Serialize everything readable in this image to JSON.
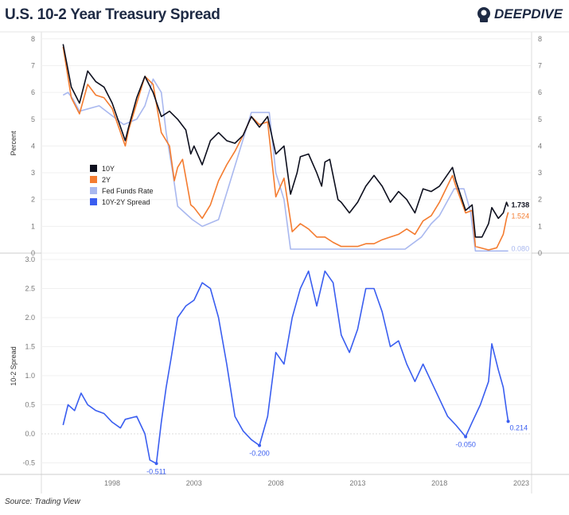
{
  "title": "U.S. 10-2 Year Treasury Spread",
  "logo_text": "DEEPDIVE",
  "source": "Source: Trading View",
  "colors": {
    "y10": "#0d0f1e",
    "y2": "#f47c30",
    "ffr": "#a9b8ef",
    "spread": "#3a5ef0"
  },
  "chart_data": [
    {
      "type": "line",
      "ylabel": "Percent",
      "ylim": [
        0,
        8
      ],
      "yticks": [
        "0",
        "1",
        "2",
        "3",
        "4",
        "5",
        "6",
        "7",
        "8"
      ],
      "legend": [
        "10Y",
        "2Y",
        "Fed Funds Rate",
        "10Y-2Y Spread"
      ],
      "legend_placement": "center-left",
      "series": [
        {
          "name": "10Y",
          "color": "#0d0f1e",
          "end_label": "1.738",
          "x": [
            1995.0,
            1995.5,
            1996.0,
            1996.5,
            1997.0,
            1997.5,
            1998.0,
            1998.8,
            1999.0,
            1999.5,
            2000.0,
            2000.5,
            2001.0,
            2001.5,
            2002.0,
            2002.5,
            2002.8,
            2003.0,
            2003.5,
            2004.0,
            2004.5,
            2005.0,
            2005.5,
            2006.0,
            2006.5,
            2007.0,
            2007.5,
            2008.0,
            2008.5,
            2008.9,
            2009.3,
            2009.5,
            2010.0,
            2010.5,
            2010.8,
            2011.0,
            2011.3,
            2011.8,
            2012.0,
            2012.5,
            2013.0,
            2013.5,
            2014.0,
            2014.5,
            2015.0,
            2015.5,
            2016.0,
            2016.5,
            2017.0,
            2017.5,
            2018.0,
            2018.8,
            2019.0,
            2019.6,
            2020.0,
            2020.2,
            2020.6,
            2021.0,
            2021.2,
            2021.6,
            2021.9,
            2022.1,
            2022.2
          ],
          "y": [
            7.8,
            6.2,
            5.6,
            6.8,
            6.4,
            6.2,
            5.6,
            4.2,
            4.7,
            5.8,
            6.6,
            6.0,
            5.1,
            5.3,
            5.0,
            4.6,
            3.7,
            4.0,
            3.3,
            4.2,
            4.5,
            4.2,
            4.1,
            4.4,
            5.1,
            4.7,
            5.1,
            3.7,
            4.0,
            2.2,
            3.0,
            3.6,
            3.7,
            3.0,
            2.5,
            3.4,
            3.5,
            2.0,
            1.9,
            1.5,
            1.9,
            2.5,
            2.9,
            2.5,
            1.9,
            2.3,
            2.0,
            1.5,
            2.4,
            2.3,
            2.5,
            3.2,
            2.7,
            1.6,
            1.8,
            0.6,
            0.6,
            1.1,
            1.7,
            1.3,
            1.5,
            1.9,
            1.738
          ]
        },
        {
          "name": "2Y",
          "color": "#f47c30",
          "end_label": "1.524",
          "x": [
            1995.0,
            1995.5,
            1996.0,
            1996.5,
            1997.0,
            1997.5,
            1998.0,
            1998.8,
            1999.0,
            1999.5,
            2000.0,
            2000.5,
            2001.0,
            2001.5,
            2001.8,
            2002.0,
            2002.3,
            2002.8,
            2003.0,
            2003.5,
            2004.0,
            2004.5,
            2005.0,
            2005.5,
            2006.0,
            2006.5,
            2007.0,
            2007.5,
            2008.0,
            2008.5,
            2009.0,
            2009.5,
            2010.0,
            2010.5,
            2011.0,
            2011.5,
            2012.0,
            2013.0,
            2013.5,
            2014.0,
            2014.5,
            2015.0,
            2015.5,
            2016.0,
            2016.5,
            2017.0,
            2017.5,
            2018.0,
            2018.8,
            2019.0,
            2019.6,
            2020.0,
            2020.2,
            2021.0,
            2021.5,
            2021.9,
            2022.1,
            2022.2
          ],
          "y": [
            7.7,
            5.8,
            5.2,
            6.3,
            5.9,
            5.8,
            5.4,
            4.0,
            4.6,
            5.6,
            6.6,
            6.3,
            4.5,
            4.0,
            2.7,
            3.2,
            3.5,
            1.8,
            1.7,
            1.3,
            1.8,
            2.7,
            3.3,
            3.8,
            4.4,
            5.1,
            4.8,
            4.9,
            2.1,
            2.8,
            0.8,
            1.1,
            0.9,
            0.6,
            0.6,
            0.4,
            0.25,
            0.25,
            0.35,
            0.35,
            0.5,
            0.6,
            0.7,
            0.9,
            0.7,
            1.2,
            1.4,
            1.9,
            2.9,
            2.5,
            1.5,
            1.6,
            0.25,
            0.12,
            0.2,
            0.7,
            1.3,
            1.524
          ]
        },
        {
          "name": "Fed Funds Rate",
          "color": "#a9b8ef",
          "end_label": "0.080",
          "x": [
            1995.0,
            1995.3,
            1995.6,
            1996.0,
            1997.2,
            1998.7,
            1999.5,
            2000.0,
            2000.5,
            2001.0,
            2001.3,
            2001.7,
            2002.0,
            2002.9,
            2003.5,
            2004.5,
            2005.0,
            2006.0,
            2006.5,
            2007.6,
            2008.0,
            2008.5,
            2008.9,
            2015.9,
            2016.9,
            2017.5,
            2018.0,
            2018.9,
            2019.5,
            2019.9,
            2020.2,
            2022.2
          ],
          "y": [
            5.9,
            6.0,
            5.75,
            5.3,
            5.5,
            4.8,
            5.0,
            5.5,
            6.5,
            6.0,
            4.5,
            3.0,
            1.75,
            1.25,
            1.0,
            1.25,
            2.25,
            4.25,
            5.25,
            5.25,
            3.0,
            2.0,
            0.15,
            0.15,
            0.6,
            1.1,
            1.4,
            2.4,
            2.4,
            1.55,
            0.08,
            0.08
          ]
        }
      ]
    },
    {
      "type": "line",
      "ylabel": "10-2 Spread",
      "ylim": [
        -0.5,
        3.0
      ],
      "yticks": [
        "-0.5",
        "0.0",
        "0.5",
        "1.0",
        "1.5",
        "2.0",
        "2.5",
        "3.0"
      ],
      "xticks": [
        "1998",
        "2003",
        "2008",
        "2013",
        "2018",
        "2023"
      ],
      "series": [
        {
          "name": "10Y-2Y Spread",
          "color": "#3a5ef0",
          "x": [
            1995.0,
            1995.3,
            1995.7,
            1996.1,
            1996.5,
            1997.0,
            1997.5,
            1998.0,
            1998.5,
            1998.8,
            1999.5,
            2000.0,
            2000.3,
            2000.7,
            2001.0,
            2001.3,
            2001.6,
            2002.0,
            2002.5,
            2003.0,
            2003.5,
            2004.0,
            2004.5,
            2005.0,
            2005.5,
            2006.0,
            2006.5,
            2007.0,
            2007.5,
            2008.0,
            2008.5,
            2009.0,
            2009.5,
            2010.0,
            2010.5,
            2011.0,
            2011.5,
            2012.0,
            2012.5,
            2013.0,
            2013.5,
            2014.0,
            2014.5,
            2015.0,
            2015.5,
            2016.0,
            2016.5,
            2017.0,
            2017.5,
            2018.0,
            2018.5,
            2019.0,
            2019.6,
            2020.0,
            2020.5,
            2021.0,
            2021.2,
            2021.6,
            2021.9,
            2022.1,
            2022.2
          ],
          "y": [
            0.15,
            0.5,
            0.4,
            0.7,
            0.5,
            0.4,
            0.35,
            0.2,
            0.1,
            0.25,
            0.3,
            0.0,
            -0.45,
            -0.511,
            0.2,
            0.8,
            1.3,
            2.0,
            2.2,
            2.3,
            2.6,
            2.5,
            2.0,
            1.2,
            0.3,
            0.05,
            -0.1,
            -0.2,
            0.3,
            1.4,
            1.2,
            2.0,
            2.5,
            2.8,
            2.2,
            2.8,
            2.6,
            1.7,
            1.4,
            1.8,
            2.5,
            2.5,
            2.1,
            1.5,
            1.6,
            1.2,
            0.9,
            1.2,
            0.9,
            0.6,
            0.3,
            0.15,
            -0.05,
            0.2,
            0.5,
            0.9,
            1.55,
            1.1,
            0.8,
            0.4,
            0.214
          ]
        }
      ],
      "annotations": [
        {
          "x": 2000.7,
          "y": -0.511,
          "label": "-0.511"
        },
        {
          "x": 2007.0,
          "y": -0.2,
          "label": "-0.200"
        },
        {
          "x": 2019.6,
          "y": -0.05,
          "label": "-0.050"
        },
        {
          "x": 2022.2,
          "y": 0.214,
          "label": "0.214"
        }
      ]
    }
  ]
}
